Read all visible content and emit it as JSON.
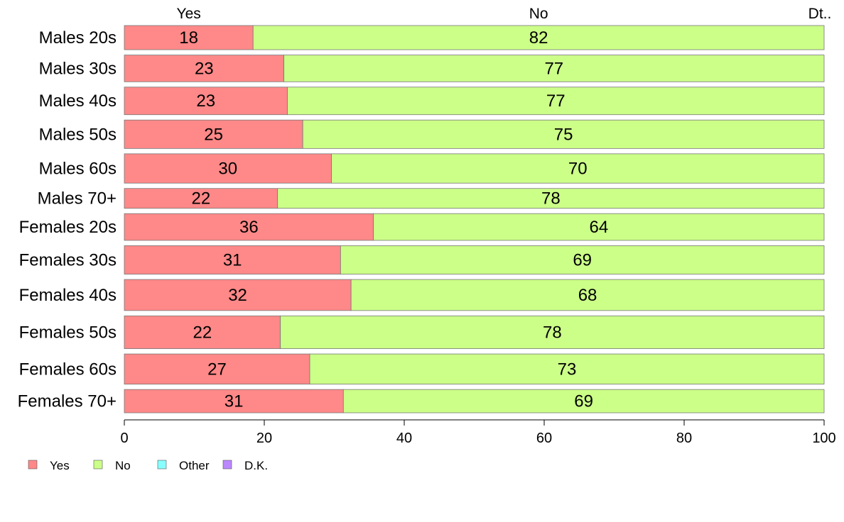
{
  "chart_data": {
    "type": "bar",
    "orientation": "horizontal",
    "stacked": true,
    "categories": [
      "Males 20s",
      "Males 30s",
      "Males 40s",
      "Males 50s",
      "Males 60s",
      "Males 70+",
      "Females 20s",
      "Females 30s",
      "Females 40s",
      "Females 50s",
      "Females 60s",
      "Females 70+"
    ],
    "row_weights": [
      28,
      31,
      32,
      33,
      34,
      23,
      31,
      33,
      36,
      38,
      35,
      27
    ],
    "series": [
      {
        "name": "Yes",
        "color": "#ff8888",
        "values": [
          18.4,
          22.8,
          23.3,
          25.5,
          29.6,
          21.9,
          35.6,
          30.9,
          32.4,
          22.3,
          26.5,
          31.3
        ],
        "labels": [
          "18",
          "23",
          "23",
          "25",
          "30",
          "22",
          "36",
          "31",
          "32",
          "22",
          "27",
          "31"
        ]
      },
      {
        "name": "No",
        "color": "#ccff88",
        "values": [
          81.6,
          77.2,
          76.7,
          74.5,
          70.4,
          78.1,
          64.4,
          69.1,
          67.6,
          77.7,
          73.5,
          68.7
        ],
        "labels": [
          "82",
          "77",
          "77",
          "75",
          "70",
          "78",
          "64",
          "69",
          "68",
          "78",
          "73",
          "69"
        ]
      },
      {
        "name": "Other",
        "color": "#88ffff",
        "values": [
          0,
          0,
          0,
          0,
          0,
          0,
          0,
          0,
          0,
          0,
          0,
          0
        ],
        "labels": [
          "",
          "",
          "",
          "",
          "",
          "",
          "",
          "",
          "",
          "",
          "",
          ""
        ]
      },
      {
        "name": "D.K.",
        "color": "#bb88ff",
        "values": [
          0,
          0,
          0,
          0,
          0,
          0,
          0,
          0,
          0,
          0,
          0,
          0
        ],
        "labels": [
          "",
          "",
          "",
          "",
          "",
          "",
          "",
          "",
          "",
          "",
          "",
          ""
        ]
      }
    ],
    "top_labels": [
      "Yes",
      "No",
      "Dt.."
    ],
    "xlim": [
      0,
      100
    ],
    "xticks": [
      0,
      20,
      40,
      60,
      80,
      100
    ],
    "legend": {
      "position": "bottom-left",
      "items": [
        "Yes",
        "No",
        "Other",
        "D.K."
      ]
    },
    "title": "",
    "xlabel": "",
    "ylabel": "",
    "grid": false
  }
}
